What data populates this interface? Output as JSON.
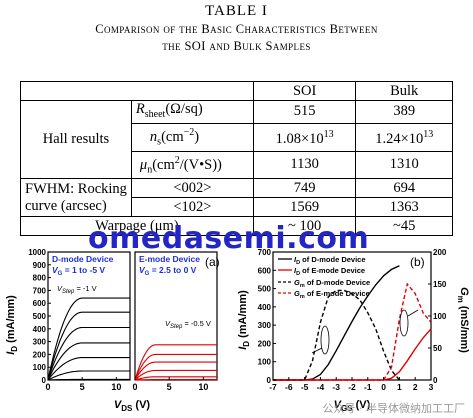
{
  "table": {
    "title": "TABLE I",
    "caption_line1": "Comparison of the Basic Characteristics Between",
    "caption_line2": "the SOI and Bulk Samples",
    "col_soi": "SOI",
    "col_bulk": "Bulk",
    "hall_label": "Hall results",
    "r_label_sym": "R",
    "r_label_sub": "sheet",
    "r_label_unit": "(Ω/sq)",
    "n_label_sym": "n",
    "n_label_sub": "s",
    "n_label_unit": "(cm",
    "n_label_exp": "−2",
    "n_label_close": ")",
    "mu_label_sym": "μ",
    "mu_label_sub": "n",
    "mu_label_unit": "(cm",
    "mu_label_exp": "2",
    "mu_label_close": "/(V•S))",
    "fwhm_line1": "FWHM: Rocking",
    "fwhm_line2": "curve (arcsec)",
    "hkl_002": "<002>",
    "hkl_102": "<102>",
    "warpage_label": "Warpage (μm)",
    "r_soi": "515",
    "r_bulk": "389",
    "n_soi_mant": "1.08×10",
    "n_soi_exp": "13",
    "n_bulk_mant": "1.24×10",
    "n_bulk_exp": "13",
    "mu_soi": "1130",
    "mu_bulk": "1310",
    "f002_soi": "749",
    "f002_bulk": "694",
    "f102_soi": "1569",
    "f102_bulk": "1363",
    "warp_soi": "~ 100",
    "warp_bulk": "~45"
  },
  "watermark": "omedasemi.com",
  "footer": "公众号 · 半导体微纳加工工厂",
  "chart_data": [
    {
      "type": "line",
      "panel": "(a)",
      "subplots": [
        {
          "name": "D-mode Device",
          "label_main": "D-mode Device",
          "label_vg": "V",
          "label_vg_sub": "G",
          "label_vg_rest": " = 1 to -5 V",
          "label_step": "V",
          "label_step_sub": "Step",
          "label_step_rest": " = -1 V",
          "color": "#000000",
          "xlim": [
            0,
            12
          ],
          "xticks": [
            0,
            5,
            10
          ],
          "ylim": [
            0,
            1000
          ],
          "yticks": [
            0,
            100,
            200,
            300,
            400,
            500,
            600,
            700,
            800,
            900,
            1000
          ],
          "curves": [
            {
              "vg": 1,
              "isat": 640
            },
            {
              "vg": 0,
              "isat": 530
            },
            {
              "vg": -1,
              "isat": 410
            },
            {
              "vg": -2,
              "isat": 290
            },
            {
              "vg": -3,
              "isat": 175
            },
            {
              "vg": -4,
              "isat": 70
            },
            {
              "vg": -5,
              "isat": 5
            }
          ],
          "knee_v": 5
        },
        {
          "name": "E-mode Device",
          "label_main": "E-mode Device",
          "label_vg": "V",
          "label_vg_sub": "G",
          "label_vg_rest": " = 2.5 to 0 V",
          "label_step": "V",
          "label_step_sub": "Step",
          "label_step_rest": " = -0.5 V",
          "color": "#e00000",
          "xlim": [
            0,
            12
          ],
          "xticks": [
            0,
            5,
            10
          ],
          "ylim": [
            0,
            1000
          ],
          "curves": [
            {
              "vg": 2.5,
              "isat": 275
            },
            {
              "vg": 2.0,
              "isat": 200
            },
            {
              "vg": 1.5,
              "isat": 140
            },
            {
              "vg": 1.0,
              "isat": 75
            },
            {
              "vg": 0.5,
              "isat": 25
            },
            {
              "vg": 0.0,
              "isat": 3
            }
          ],
          "knee_v": 3
        }
      ],
      "ylabel": "I",
      "ylabel_sub": "D",
      "ylabel_unit": " (mA/mm)",
      "xlabel": "V",
      "xlabel_sub": "DS",
      "xlabel_unit": " (V)"
    },
    {
      "type": "line",
      "panel": "(b)",
      "xlim": [
        -7,
        3
      ],
      "xticks": [
        -7,
        -6,
        -5,
        -4,
        -3,
        -2,
        -1,
        0,
        1,
        2,
        3
      ],
      "ylim_left": [
        0,
        700
      ],
      "yticks_left": [
        0,
        100,
        200,
        300,
        400,
        500,
        600,
        700
      ],
      "ylim_right": [
        0,
        200
      ],
      "yticks_right": [
        0,
        50,
        100,
        150,
        200
      ],
      "ylabel_left": "I",
      "ylabel_left_sub": "D",
      "ylabel_left_unit": " (mA/mm)",
      "ylabel_right": "G",
      "ylabel_right_sub": "m",
      "ylabel_right_unit": " (mS/mm)",
      "xlabel": "V",
      "xlabel_sub": "GS",
      "xlabel_unit": " (V)",
      "series": [
        {
          "name": "ID of D-mode Device",
          "legend_sym": "I",
          "legend_sub": "D",
          "legend_rest": " of D-mode Device",
          "color": "#000000",
          "dash": "solid",
          "axis": "left",
          "x": [
            -7,
            -5,
            -4.5,
            -4,
            -3.5,
            -3,
            -2.5,
            -2,
            -1.5,
            -1,
            -0.5,
            0,
            0.5,
            1
          ],
          "y": [
            0,
            0,
            5,
            30,
            85,
            160,
            240,
            320,
            395,
            460,
            520,
            570,
            605,
            625
          ]
        },
        {
          "name": "ID of E-mode Device",
          "legend_sym": "I",
          "legend_sub": "D",
          "legend_rest": " of E-mode Device",
          "color": "#e00000",
          "dash": "solid",
          "axis": "left",
          "x": [
            -7,
            0,
            0.5,
            1,
            1.5,
            2,
            2.5,
            3
          ],
          "y": [
            0,
            0,
            10,
            45,
            105,
            170,
            230,
            280
          ]
        },
        {
          "name": "Gm of D-mode Device",
          "legend_sym": "G",
          "legend_sub": "m",
          "legend_rest": " of D-mode Device",
          "color": "#000000",
          "dash": "dash",
          "axis": "right",
          "x": [
            -7,
            -5,
            -4.5,
            -4,
            -3.5,
            -3,
            -2.5,
            -2,
            -1.5,
            -1,
            -0.5,
            0,
            0.5,
            1
          ],
          "y": [
            0,
            0,
            30,
            90,
            130,
            140,
            140,
            135,
            125,
            105,
            80,
            45,
            15,
            0
          ]
        },
        {
          "name": "Gm of E-mode Device",
          "legend_sym": "G",
          "legend_sub": "m",
          "legend_rest": " of E-mode Device",
          "color": "#e00000",
          "dash": "dash",
          "axis": "right",
          "x": [
            -7,
            0,
            0.5,
            1,
            1.5,
            2,
            2.5,
            3
          ],
          "y": [
            0,
            0,
            20,
            95,
            150,
            135,
            105,
            90
          ]
        }
      ]
    }
  ]
}
